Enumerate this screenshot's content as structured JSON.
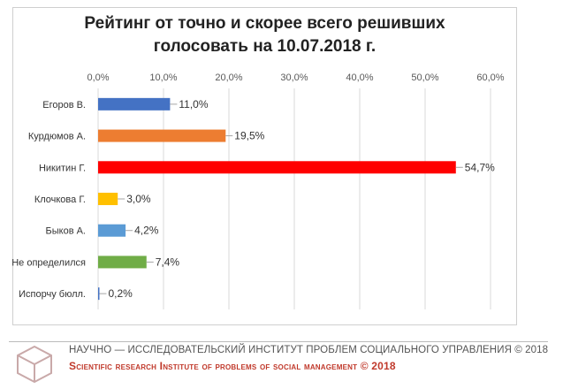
{
  "chart_data": {
    "type": "bar",
    "orientation": "horizontal",
    "title_lines": [
      "Рейтинг от точно и скорее всего решивших",
      "голосовать на 10.07.2018 г."
    ],
    "xlim": [
      0,
      60
    ],
    "ticks": [
      0,
      10,
      20,
      30,
      40,
      50,
      60
    ],
    "tick_labels": [
      "0,0%",
      "10,0%",
      "20,0%",
      "30,0%",
      "40,0%",
      "50,0%",
      "60,0%"
    ],
    "axis_position": "top",
    "grid": true,
    "categories": [
      "Егоров В.",
      "Курдюмов А.",
      "Никитин Г.",
      "Клочкова Г.",
      "Быков А.",
      "Не определился",
      "Испорчу бюлл."
    ],
    "values": [
      11.0,
      19.5,
      54.7,
      3.0,
      4.2,
      7.4,
      0.2
    ],
    "value_labels": [
      "11,0%",
      "19,5%",
      "54,7%",
      "3,0%",
      "4,2%",
      "7,4%",
      "0,2%"
    ],
    "colors": [
      "#4472C4",
      "#ED7D31",
      "#FF0000",
      "#FFC000",
      "#5B9BD5",
      "#70AD47",
      "#4472C4"
    ]
  },
  "footer": {
    "line1": "НАУЧНО — ИССЛЕДОВАТЕЛЬСКИЙ ИНСТИТУТ ПРОБЛЕМ СОЦИАЛЬНОГО УПРАВЛЕНИЯ © 2018",
    "line2": "Scientific research Institute of problems of social management © 2018"
  }
}
